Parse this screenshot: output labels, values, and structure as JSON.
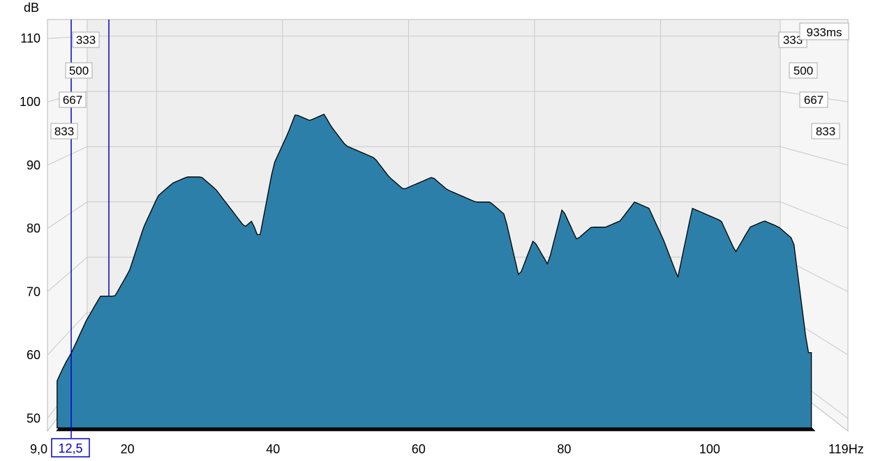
{
  "chart_data": {
    "type": "waterfall",
    "ylabel": "dB",
    "xlim": [
      9.0,
      119
    ],
    "ylim": [
      48,
      113
    ],
    "x_ticks": [
      {
        "label": "9,0",
        "value": 9.0
      },
      {
        "label": "20",
        "value": 20
      },
      {
        "label": "40",
        "value": 40
      },
      {
        "label": "60",
        "value": 60
      },
      {
        "label": "80",
        "value": 80
      },
      {
        "label": "100",
        "value": 100
      },
      {
        "label": "119Hz",
        "value": 119
      }
    ],
    "y_ticks": [
      {
        "label": "50",
        "value": 50
      },
      {
        "label": "60",
        "value": 60
      },
      {
        "label": "70",
        "value": 70
      },
      {
        "label": "80",
        "value": 80
      },
      {
        "label": "90",
        "value": 90
      },
      {
        "label": "100",
        "value": 100
      },
      {
        "label": "110",
        "value": 110
      }
    ],
    "time_labels_left": [
      "333",
      "500",
      "667",
      "833"
    ],
    "time_labels_right": [
      "333",
      "500",
      "667",
      "833"
    ],
    "time_end_label": "933ms",
    "cursor_label": "12,5",
    "cursor_freq": 12.5,
    "colors": {
      "fill": "#2c7fa8",
      "outline": "#000000",
      "grid": "#c8c8c8",
      "back": "#eeeeee",
      "cursor": "#0000cc"
    },
    "peak_profile": [
      {
        "f": 9.0,
        "db": 53
      },
      {
        "f": 11,
        "db": 58
      },
      {
        "f": 12,
        "db": 60
      },
      {
        "f": 14,
        "db": 65
      },
      {
        "f": 16,
        "db": 69
      },
      {
        "f": 18,
        "db": 69
      },
      {
        "f": 20,
        "db": 73
      },
      {
        "f": 22,
        "db": 80
      },
      {
        "f": 24,
        "db": 85
      },
      {
        "f": 26,
        "db": 87
      },
      {
        "f": 28,
        "db": 88
      },
      {
        "f": 30,
        "db": 88
      },
      {
        "f": 32,
        "db": 86
      },
      {
        "f": 34,
        "db": 83
      },
      {
        "f": 36,
        "db": 80
      },
      {
        "f": 37,
        "db": 81
      },
      {
        "f": 38,
        "db": 78
      },
      {
        "f": 40,
        "db": 90
      },
      {
        "f": 42,
        "db": 95
      },
      {
        "f": 43,
        "db": 98
      },
      {
        "f": 45,
        "db": 97
      },
      {
        "f": 47,
        "db": 98
      },
      {
        "f": 48,
        "db": 96
      },
      {
        "f": 50,
        "db": 93
      },
      {
        "f": 52,
        "db": 92
      },
      {
        "f": 54,
        "db": 91
      },
      {
        "f": 56,
        "db": 88
      },
      {
        "f": 58,
        "db": 86
      },
      {
        "f": 60,
        "db": 87
      },
      {
        "f": 62,
        "db": 88
      },
      {
        "f": 64,
        "db": 86
      },
      {
        "f": 66,
        "db": 85
      },
      {
        "f": 68,
        "db": 84
      },
      {
        "f": 70,
        "db": 84
      },
      {
        "f": 72,
        "db": 82
      },
      {
        "f": 74,
        "db": 72
      },
      {
        "f": 76,
        "db": 78
      },
      {
        "f": 78,
        "db": 74
      },
      {
        "f": 80,
        "db": 83
      },
      {
        "f": 82,
        "db": 78
      },
      {
        "f": 84,
        "db": 80
      },
      {
        "f": 86,
        "db": 80
      },
      {
        "f": 88,
        "db": 81
      },
      {
        "f": 90,
        "db": 84
      },
      {
        "f": 92,
        "db": 83
      },
      {
        "f": 94,
        "db": 78
      },
      {
        "f": 96,
        "db": 72
      },
      {
        "f": 98,
        "db": 83
      },
      {
        "f": 100,
        "db": 82
      },
      {
        "f": 102,
        "db": 81
      },
      {
        "f": 104,
        "db": 76
      },
      {
        "f": 106,
        "db": 80
      },
      {
        "f": 108,
        "db": 81
      },
      {
        "f": 110,
        "db": 80
      },
      {
        "f": 112,
        "db": 78
      },
      {
        "f": 114,
        "db": 60
      }
    ]
  }
}
